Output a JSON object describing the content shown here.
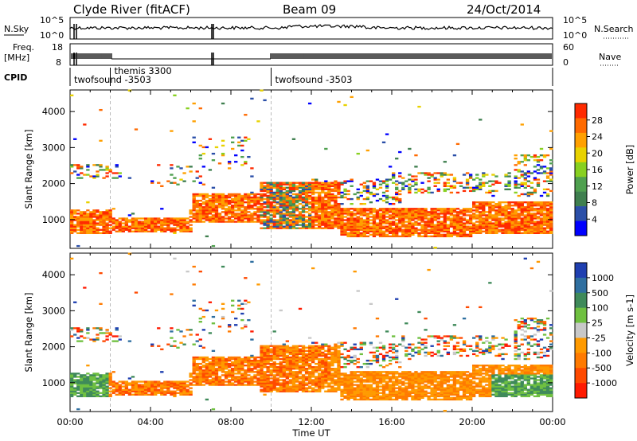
{
  "header": {
    "station": "Clyde River (fitACF)",
    "beam": "Beam 09",
    "date": "24/Oct/2014"
  },
  "strip_labels": {
    "nsky": "N.Sky",
    "nsky_top": "10^5",
    "nsky_bottom": "10^0",
    "nsearch": "N.Search",
    "nsearch_top": "10^5",
    "nsearch_bottom": "10^0",
    "freq_line1": "Freq.",
    "freq_line2": "[MHz]",
    "freq_top": "18",
    "freq_bottom": "8",
    "nave": "Nave",
    "nave_top": "60",
    "nave_bottom": "0",
    "cpid": "CPID"
  },
  "cpid_segments": [
    {
      "label": "twofsound -3503",
      "start_hour": 0.0
    },
    {
      "label": "themis 3300",
      "start_hour": 2.0
    },
    {
      "label": "twofsound -3503",
      "start_hour": 10.0
    }
  ],
  "colors": {
    "power_scale": [
      "#0000ff",
      "#2b4fa8",
      "#3f7f4f",
      "#4fa04f",
      "#88d020",
      "#e8d200",
      "#ffa000",
      "#ff6a00",
      "#ff2a00"
    ],
    "velocity_scale": [
      "#1f3fb0",
      "#2f6fa0",
      "#3f8a5a",
      "#6fc040",
      "#c8c8c8",
      "#ff9a00",
      "#ff7a00",
      "#ff4a00",
      "#ff1a00"
    ]
  },
  "chart_data": [
    {
      "type": "heatmap",
      "title": "Power",
      "ylabel": "Slant Range [km]",
      "xlabel": "",
      "x_ticks": [
        "00:00",
        "04:00",
        "08:00",
        "12:00",
        "16:00",
        "20:00",
        "00:00"
      ],
      "y_ticks": [
        "1000",
        "2000",
        "3000",
        "4000"
      ],
      "ylim": [
        200,
        4600
      ],
      "xlim_hours": [
        0,
        24
      ],
      "colorbar_label": "Power [dB]",
      "colorbar_ticks": [
        "4",
        "8",
        "12",
        "16",
        "20",
        "24",
        "28"
      ]
    },
    {
      "type": "heatmap",
      "title": "Velocity",
      "ylabel": "Slant Range [km]",
      "xlabel": "Time UT",
      "x_ticks": [
        "00:00",
        "04:00",
        "08:00",
        "12:00",
        "16:00",
        "20:00",
        "00:00"
      ],
      "y_ticks": [
        "1000",
        "2000",
        "3000",
        "4000"
      ],
      "ylim": [
        200,
        4600
      ],
      "xlim_hours": [
        0,
        24
      ],
      "colorbar_label": "Velocity [m s-1]",
      "colorbar_ticks": [
        "1000",
        "500",
        "100",
        "25",
        "-25",
        "-100",
        "-500",
        "-1000"
      ]
    }
  ]
}
